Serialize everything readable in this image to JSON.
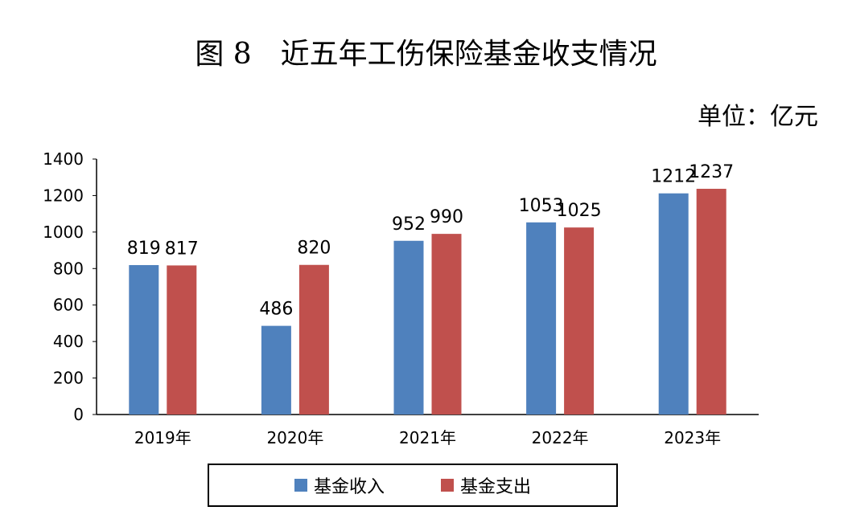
{
  "title": "图 8　近五年工伤保险基金收支情况",
  "unit": "单位：亿元",
  "colors": {
    "income": "#4f81bd",
    "expense": "#c0504d",
    "axis": "#000000"
  },
  "chart_data": {
    "type": "bar",
    "title": "图 8　近五年工伤保险基金收支情况",
    "unit": "单位：亿元",
    "categories": [
      "2019年",
      "2020年",
      "2021年",
      "2022年",
      "2023年"
    ],
    "series": [
      {
        "name": "基金收入",
        "color": "#4f81bd",
        "values": [
          819,
          486,
          952,
          1053,
          1212
        ]
      },
      {
        "name": "基金支出",
        "color": "#c0504d",
        "values": [
          817,
          820,
          990,
          1025,
          1237
        ]
      }
    ],
    "ylim": [
      0,
      1400
    ],
    "yticks": [
      0,
      200,
      400,
      600,
      800,
      1000,
      1200,
      1400
    ],
    "grid": false,
    "legend_position": "bottom"
  }
}
